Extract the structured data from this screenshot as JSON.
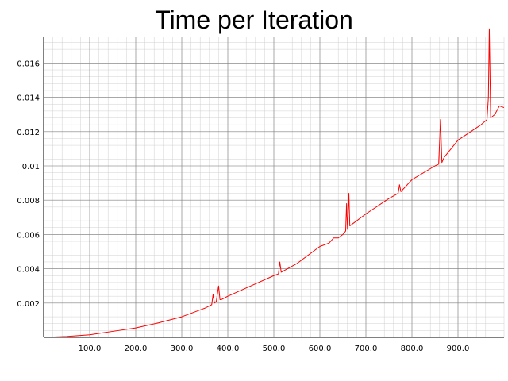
{
  "chart_data": {
    "type": "line",
    "title": "Time per Iteration",
    "xlabel": "",
    "ylabel": "",
    "xlim": [
      0,
      1000
    ],
    "ylim": [
      0,
      0.0175
    ],
    "grid": true,
    "line_color": "#ff0000",
    "grid_major_color": "#808080",
    "grid_minor_color": "#d0d0d0",
    "x_ticks": [
      100,
      200,
      300,
      400,
      500,
      600,
      700,
      800,
      900
    ],
    "x_tick_labels": [
      "100.0",
      "200.0",
      "300.0",
      "400.0",
      "500.0",
      "600.0",
      "700.0",
      "800.0",
      "900.0"
    ],
    "y_ticks": [
      0.002,
      0.004,
      0.006,
      0.008,
      0.01,
      0.012,
      0.014,
      0.016
    ],
    "y_tick_labels": [
      "0.002",
      "0.004",
      "0.006",
      "0.008",
      "0.01",
      "0.012",
      "0.014",
      "0.016"
    ],
    "series": [
      {
        "x": [
          0,
          50,
          100,
          150,
          200,
          250,
          300,
          350,
          365,
          368,
          371,
          375,
          380,
          383,
          386,
          400,
          450,
          500,
          510,
          513,
          516,
          550,
          600,
          620,
          630,
          640,
          650,
          656,
          658,
          660,
          663,
          665,
          670,
          700,
          750,
          770,
          773,
          776,
          800,
          850,
          858,
          862,
          865,
          870,
          900,
          950,
          963,
          966,
          968,
          971,
          980,
          990,
          1000
        ],
        "y": [
          0.0,
          5e-05,
          0.00015,
          0.00035,
          0.00055,
          0.00085,
          0.0012,
          0.0017,
          0.0019,
          0.0025,
          0.002,
          0.0021,
          0.003,
          0.0022,
          0.0022,
          0.0024,
          0.003,
          0.0036,
          0.0037,
          0.0044,
          0.0038,
          0.0043,
          0.0053,
          0.0055,
          0.0058,
          0.0058,
          0.006,
          0.0062,
          0.0078,
          0.0063,
          0.0084,
          0.0065,
          0.0066,
          0.0072,
          0.0081,
          0.0084,
          0.0089,
          0.0085,
          0.0092,
          0.01,
          0.0101,
          0.0127,
          0.0102,
          0.0105,
          0.0115,
          0.0124,
          0.0127,
          0.014,
          0.018,
          0.0128,
          0.013,
          0.0135,
          0.0134
        ]
      }
    ]
  }
}
